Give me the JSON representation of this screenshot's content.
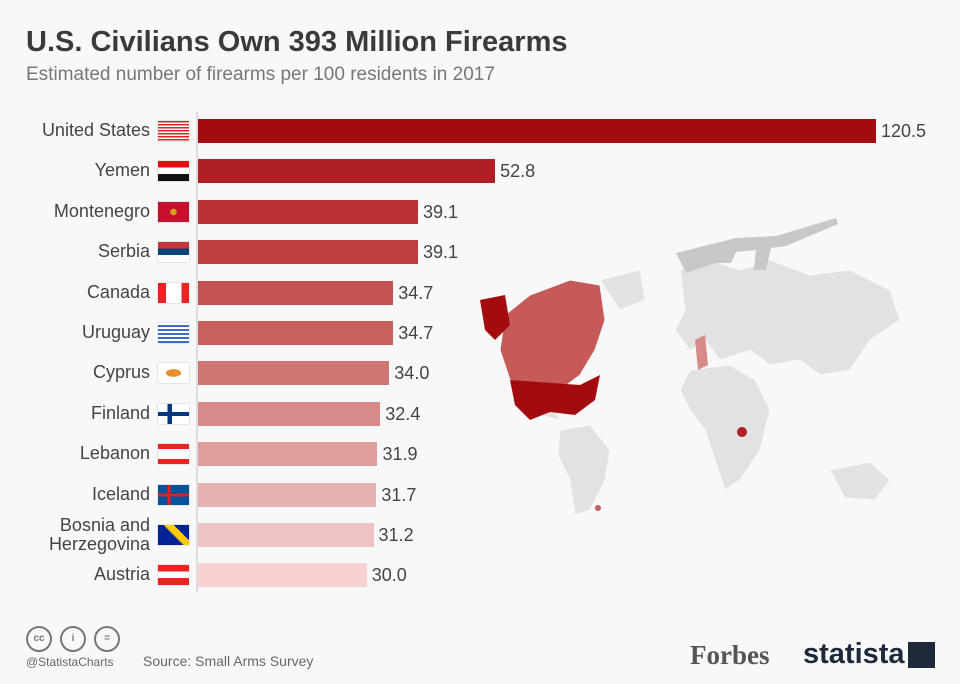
{
  "title": "U.S. Civilians Own 393 Million Firearms",
  "subtitle": "Estimated number of firearms per 100 residents in 2017",
  "chart_data": {
    "type": "bar",
    "orientation": "horizontal",
    "categories": [
      "United States",
      "Yemen",
      "Montenegro",
      "Serbia",
      "Canada",
      "Uruguay",
      "Cyprus",
      "Finland",
      "Lebanon",
      "Iceland",
      "Bosnia and Herzegovina",
      "Austria"
    ],
    "values": [
      120.5,
      52.8,
      39.1,
      39.1,
      34.7,
      34.7,
      34.0,
      32.4,
      31.9,
      31.7,
      31.2,
      30.0
    ],
    "value_labels": [
      "120.5",
      "52.8",
      "39.1",
      "39.1",
      "34.7",
      "34.7",
      "34.0",
      "32.4",
      "31.9",
      "31.7",
      "31.2",
      "30.0"
    ],
    "colors": [
      "#a30b0e",
      "#b01f22",
      "#b83234",
      "#bd3f40",
      "#c35252",
      "#c8605f",
      "#cf7573",
      "#d88a88",
      "#df9e9c",
      "#e7b2b0",
      "#eec4c2",
      "#f6d3d1"
    ],
    "xlim": [
      0,
      120.5
    ],
    "grid": false,
    "legend": "none"
  },
  "footer": {
    "handle": "@StatistaCharts",
    "source": "Source: Small Arms Survey",
    "forbes": "Forbes",
    "statista": "statista",
    "cc_icons": [
      "cc-icon",
      "by-icon",
      "nd-icon"
    ]
  }
}
